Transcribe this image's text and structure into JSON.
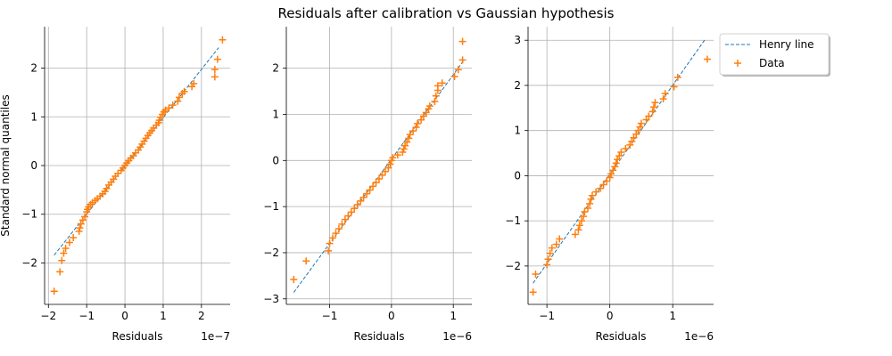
{
  "figure": {
    "title": "Residuals after calibration vs Gaussian hypothesis"
  },
  "legend": {
    "placement": "right-top",
    "entries": [
      {
        "label": "Henry line",
        "style": "dashed-line",
        "color": "#1f77b4"
      },
      {
        "label": "Data",
        "style": "plus-marker",
        "color": "#ff7f0e"
      }
    ]
  },
  "chart_data": [
    {
      "type": "scatter",
      "title": "",
      "xlabel": "Residuals",
      "ylabel": "Standard normal quantiles",
      "offset_text": "1e−7",
      "xlim": [
        -2.1,
        2.75
      ],
      "ylim": [
        -2.85,
        2.85
      ],
      "x_ticks": [
        -2,
        -1,
        0,
        1,
        2
      ],
      "y_ticks": [
        -2,
        -1,
        0,
        1,
        2
      ],
      "grid": true,
      "henry_line": {
        "x": [
          -1.85,
          2.45
        ],
        "y": [
          -1.84,
          2.42
        ]
      },
      "series": [
        {
          "name": "Data",
          "points": [
            [
              -1.85,
              -2.58
            ],
            [
              -1.7,
              -2.18
            ],
            [
              -1.65,
              -1.95
            ],
            [
              -1.6,
              -1.8
            ],
            [
              -1.55,
              -1.7
            ],
            [
              -1.45,
              -1.58
            ],
            [
              -1.35,
              -1.48
            ],
            [
              -1.2,
              -1.35
            ],
            [
              -1.18,
              -1.28
            ],
            [
              -1.15,
              -1.2
            ],
            [
              -1.1,
              -1.12
            ],
            [
              -1.05,
              -1.05
            ],
            [
              -1.0,
              -0.95
            ],
            [
              -0.98,
              -0.9
            ],
            [
              -0.95,
              -0.85
            ],
            [
              -0.9,
              -0.8
            ],
            [
              -0.85,
              -0.76
            ],
            [
              -0.78,
              -0.72
            ],
            [
              -0.72,
              -0.68
            ],
            [
              -0.65,
              -0.63
            ],
            [
              -0.58,
              -0.58
            ],
            [
              -0.52,
              -0.53
            ],
            [
              -0.48,
              -0.47
            ],
            [
              -0.42,
              -0.4
            ],
            [
              -0.36,
              -0.34
            ],
            [
              -0.3,
              -0.28
            ],
            [
              -0.25,
              -0.22
            ],
            [
              -0.18,
              -0.16
            ],
            [
              -0.1,
              -0.1
            ],
            [
              -0.05,
              -0.05
            ],
            [
              0.0,
              0.0
            ],
            [
              0.05,
              0.05
            ],
            [
              0.1,
              0.1
            ],
            [
              0.15,
              0.15
            ],
            [
              0.22,
              0.2
            ],
            [
              0.28,
              0.26
            ],
            [
              0.35,
              0.32
            ],
            [
              0.4,
              0.38
            ],
            [
              0.45,
              0.44
            ],
            [
              0.5,
              0.5
            ],
            [
              0.55,
              0.56
            ],
            [
              0.6,
              0.62
            ],
            [
              0.65,
              0.67
            ],
            [
              0.7,
              0.72
            ],
            [
              0.75,
              0.77
            ],
            [
              0.82,
              0.83
            ],
            [
              0.88,
              0.88
            ],
            [
              0.9,
              0.93
            ],
            [
              0.93,
              0.99
            ],
            [
              0.98,
              1.05
            ],
            [
              1.02,
              1.1
            ],
            [
              1.06,
              1.14
            ],
            [
              1.15,
              1.18
            ],
            [
              1.25,
              1.24
            ],
            [
              1.38,
              1.32
            ],
            [
              1.42,
              1.4
            ],
            [
              1.5,
              1.48
            ],
            [
              1.55,
              1.52
            ],
            [
              1.75,
              1.62
            ],
            [
              1.8,
              1.68
            ],
            [
              2.35,
              1.82
            ],
            [
              2.35,
              1.97
            ],
            [
              2.42,
              2.18
            ],
            [
              2.55,
              2.58
            ]
          ]
        }
      ]
    },
    {
      "type": "scatter",
      "title": "",
      "xlabel": "Residuals",
      "ylabel": "",
      "offset_text": "1e−6",
      "xlim": [
        -1.7,
        1.3
      ],
      "ylim": [
        -3.12,
        2.9
      ],
      "x_ticks": [
        -1,
        0,
        1
      ],
      "y_ticks": [
        -3,
        -2,
        -1,
        0,
        1,
        2
      ],
      "grid": true,
      "henry_line": {
        "x": [
          -1.58,
          1.17
        ],
        "y": [
          -2.86,
          2.17
        ]
      },
      "series": [
        {
          "name": "Data",
          "points": [
            [
              -1.58,
              -2.58
            ],
            [
              -1.38,
              -2.18
            ],
            [
              -1.02,
              -1.96
            ],
            [
              -1.0,
              -1.8
            ],
            [
              -0.95,
              -1.68
            ],
            [
              -0.9,
              -1.58
            ],
            [
              -0.85,
              -1.48
            ],
            [
              -0.8,
              -1.38
            ],
            [
              -0.75,
              -1.28
            ],
            [
              -0.7,
              -1.2
            ],
            [
              -0.65,
              -1.12
            ],
            [
              -0.6,
              -1.04
            ],
            [
              -0.55,
              -0.96
            ],
            [
              -0.5,
              -0.88
            ],
            [
              -0.45,
              -0.8
            ],
            [
              -0.4,
              -0.72
            ],
            [
              -0.35,
              -0.64
            ],
            [
              -0.3,
              -0.56
            ],
            [
              -0.25,
              -0.48
            ],
            [
              -0.2,
              -0.4
            ],
            [
              -0.15,
              -0.32
            ],
            [
              -0.1,
              -0.24
            ],
            [
              -0.05,
              -0.16
            ],
            [
              -0.02,
              -0.08
            ],
            [
              0.0,
              0.0
            ],
            [
              0.02,
              0.06
            ],
            [
              0.1,
              0.12
            ],
            [
              0.18,
              0.18
            ],
            [
              0.2,
              0.25
            ],
            [
              0.22,
              0.32
            ],
            [
              0.25,
              0.4
            ],
            [
              0.28,
              0.48
            ],
            [
              0.3,
              0.56
            ],
            [
              0.35,
              0.64
            ],
            [
              0.4,
              0.72
            ],
            [
              0.42,
              0.8
            ],
            [
              0.48,
              0.88
            ],
            [
              0.52,
              0.96
            ],
            [
              0.56,
              1.04
            ],
            [
              0.6,
              1.12
            ],
            [
              0.62,
              1.18
            ],
            [
              0.7,
              1.28
            ],
            [
              0.72,
              1.4
            ],
            [
              0.75,
              1.52
            ],
            [
              0.75,
              1.62
            ],
            [
              0.82,
              1.68
            ],
            [
              1.02,
              1.82
            ],
            [
              1.08,
              1.97
            ],
            [
              1.15,
              2.18
            ],
            [
              1.15,
              2.58
            ]
          ]
        }
      ]
    },
    {
      "type": "scatter",
      "title": "",
      "xlabel": "Residuals",
      "ylabel": "",
      "offset_text": "1e−6",
      "xlim": [
        -1.3,
        1.65
      ],
      "ylim": [
        -2.85,
        3.3
      ],
      "x_ticks": [
        -1,
        0,
        1
      ],
      "y_ticks": [
        -2,
        -1,
        0,
        1,
        2,
        3
      ],
      "grid": true,
      "henry_line": {
        "x": [
          -1.22,
          1.52
        ],
        "y": [
          -2.38,
          3.03
        ]
      },
      "series": [
        {
          "name": "Data",
          "points": [
            [
              -1.22,
              -2.58
            ],
            [
              -1.18,
              -2.18
            ],
            [
              -1.0,
              -1.97
            ],
            [
              -0.98,
              -1.85
            ],
            [
              -0.95,
              -1.72
            ],
            [
              -0.92,
              -1.6
            ],
            [
              -0.85,
              -1.52
            ],
            [
              -0.8,
              -1.4
            ],
            [
              -0.55,
              -1.3
            ],
            [
              -0.5,
              -1.2
            ],
            [
              -0.48,
              -1.1
            ],
            [
              -0.45,
              -1.0
            ],
            [
              -0.42,
              -0.9
            ],
            [
              -0.4,
              -0.8
            ],
            [
              -0.35,
              -0.72
            ],
            [
              -0.32,
              -0.62
            ],
            [
              -0.3,
              -0.52
            ],
            [
              -0.28,
              -0.44
            ],
            [
              -0.22,
              -0.36
            ],
            [
              -0.15,
              -0.28
            ],
            [
              -0.1,
              -0.2
            ],
            [
              -0.05,
              -0.12
            ],
            [
              0.0,
              -0.04
            ],
            [
              0.02,
              0.04
            ],
            [
              0.05,
              0.12
            ],
            [
              0.08,
              0.2
            ],
            [
              0.1,
              0.28
            ],
            [
              0.12,
              0.36
            ],
            [
              0.15,
              0.44
            ],
            [
              0.18,
              0.52
            ],
            [
              0.25,
              0.6
            ],
            [
              0.32,
              0.68
            ],
            [
              0.35,
              0.76
            ],
            [
              0.38,
              0.84
            ],
            [
              0.42,
              0.92
            ],
            [
              0.45,
              1.0
            ],
            [
              0.48,
              1.08
            ],
            [
              0.5,
              1.16
            ],
            [
              0.58,
              1.24
            ],
            [
              0.62,
              1.32
            ],
            [
              0.68,
              1.42
            ],
            [
              0.7,
              1.52
            ],
            [
              0.72,
              1.62
            ],
            [
              0.85,
              1.7
            ],
            [
              0.88,
              1.82
            ],
            [
              1.02,
              1.97
            ],
            [
              1.08,
              2.18
            ],
            [
              1.55,
              2.58
            ]
          ]
        }
      ]
    }
  ]
}
